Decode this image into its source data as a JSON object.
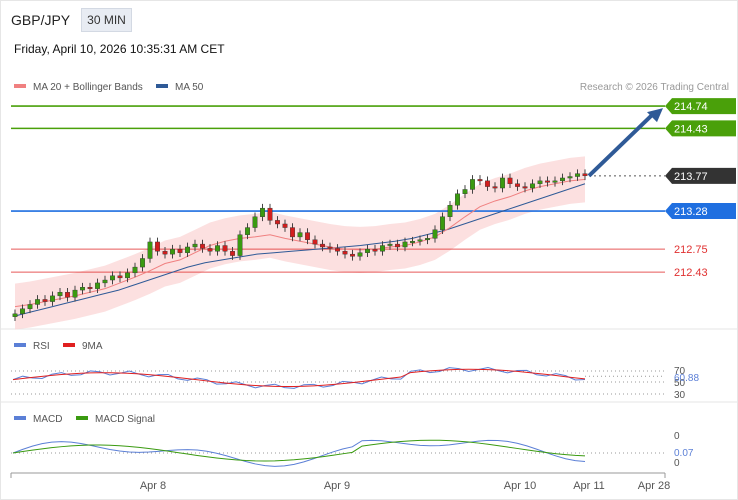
{
  "header": {
    "symbol": "GBP/JPY",
    "timeframe": "30 MIN",
    "datetime": "Friday, April 10, 2026 10:35:31 AM CET"
  },
  "price_panel": {
    "legend": [
      {
        "label": "MA 20 + Bollinger Bands",
        "color": "#f08080"
      },
      {
        "label": "MA 50",
        "color": "#2f5a97"
      }
    ],
    "credit": "Research © 2026 Trading Central"
  },
  "rsi_panel": {
    "legend": [
      {
        "label": "RSI",
        "color": "#5b7fd6"
      },
      {
        "label": "9MA",
        "color": "#e02020"
      }
    ],
    "ticks": [
      "70",
      "50",
      "30"
    ],
    "current": "60.88"
  },
  "macd_panel": {
    "legend": [
      {
        "label": "MACD",
        "color": "#5b7fd6"
      },
      {
        "label": "MACD Signal",
        "color": "#3a9a10"
      }
    ],
    "ticks": [
      "0",
      "0"
    ],
    "current": "0.07"
  },
  "x_axis": {
    "labels": [
      "Apr 8",
      "Apr 9",
      "Apr 10",
      "Apr 11",
      "Apr 28"
    ]
  },
  "chart_data": {
    "type": "candlestick",
    "title": "GBP/JPY",
    "timeframe": "30 MIN",
    "ylim": [
      211.75,
      214.95
    ],
    "levels": [
      {
        "value": 214.74,
        "label": "214.74",
        "kind": "target",
        "color": "#4aa00a"
      },
      {
        "value": 214.43,
        "label": "214.43",
        "kind": "target",
        "color": "#4aa00a"
      },
      {
        "value": 213.77,
        "label": "213.77",
        "kind": "last-price",
        "color": "#333333"
      },
      {
        "value": 213.28,
        "label": "213.28",
        "kind": "pivot",
        "color": "#1f6fe0"
      },
      {
        "value": 212.75,
        "label": "212.75",
        "kind": "support",
        "color": "#e03030"
      },
      {
        "value": 212.43,
        "label": "212.43",
        "kind": "support",
        "color": "#e03030"
      }
    ],
    "close_series": [
      211.85,
      211.92,
      211.98,
      212.05,
      212.02,
      212.1,
      212.15,
      212.08,
      212.18,
      212.22,
      212.2,
      212.28,
      212.32,
      212.38,
      212.35,
      212.42,
      212.5,
      212.62,
      212.85,
      212.72,
      212.68,
      212.75,
      212.7,
      212.78,
      212.82,
      212.76,
      212.72,
      212.8,
      212.72,
      212.66,
      212.95,
      213.05,
      213.2,
      213.32,
      213.15,
      213.1,
      213.05,
      212.92,
      212.98,
      212.88,
      212.82,
      212.78,
      212.76,
      212.72,
      212.68,
      212.65,
      212.7,
      212.75,
      212.72,
      212.8,
      212.82,
      212.78,
      212.85,
      212.86,
      212.88,
      212.9,
      213.02,
      213.2,
      213.36,
      213.52,
      213.58,
      213.72,
      213.7,
      213.62,
      213.6,
      213.74,
      213.66,
      213.62,
      213.6,
      213.66,
      213.7,
      213.68,
      213.7,
      213.74,
      213.76,
      213.8,
      213.77
    ],
    "ma20": [
      211.95,
      211.98,
      212.02,
      212.06,
      212.1,
      212.15,
      212.2,
      212.28,
      212.36,
      212.45,
      212.55,
      212.6,
      212.7,
      212.8,
      212.86,
      212.9,
      212.92,
      212.95,
      212.9,
      212.86,
      212.82,
      212.78,
      212.75,
      212.74,
      212.75,
      212.78,
      212.8,
      212.85,
      212.92,
      213.05,
      213.2,
      213.34,
      213.42,
      213.48,
      213.56,
      213.62,
      213.66,
      213.7,
      213.72
    ],
    "ma50": [
      211.82,
      211.88,
      211.94,
      212.0,
      212.06,
      212.12,
      212.18,
      212.26,
      212.34,
      212.42,
      212.5,
      212.56,
      212.6,
      212.64,
      212.68,
      212.7,
      212.72,
      212.74,
      212.76,
      212.78,
      212.8,
      212.83,
      212.86,
      212.9,
      212.96,
      213.02,
      213.1,
      213.18,
      213.26,
      213.34,
      213.42,
      213.5,
      213.58,
      213.66
    ],
    "rsi": {
      "last": 60.88,
      "levels": [
        70,
        50,
        30
      ]
    },
    "macd": {
      "last": 0.07
    },
    "forecast": "up-arrow toward 214.74"
  }
}
